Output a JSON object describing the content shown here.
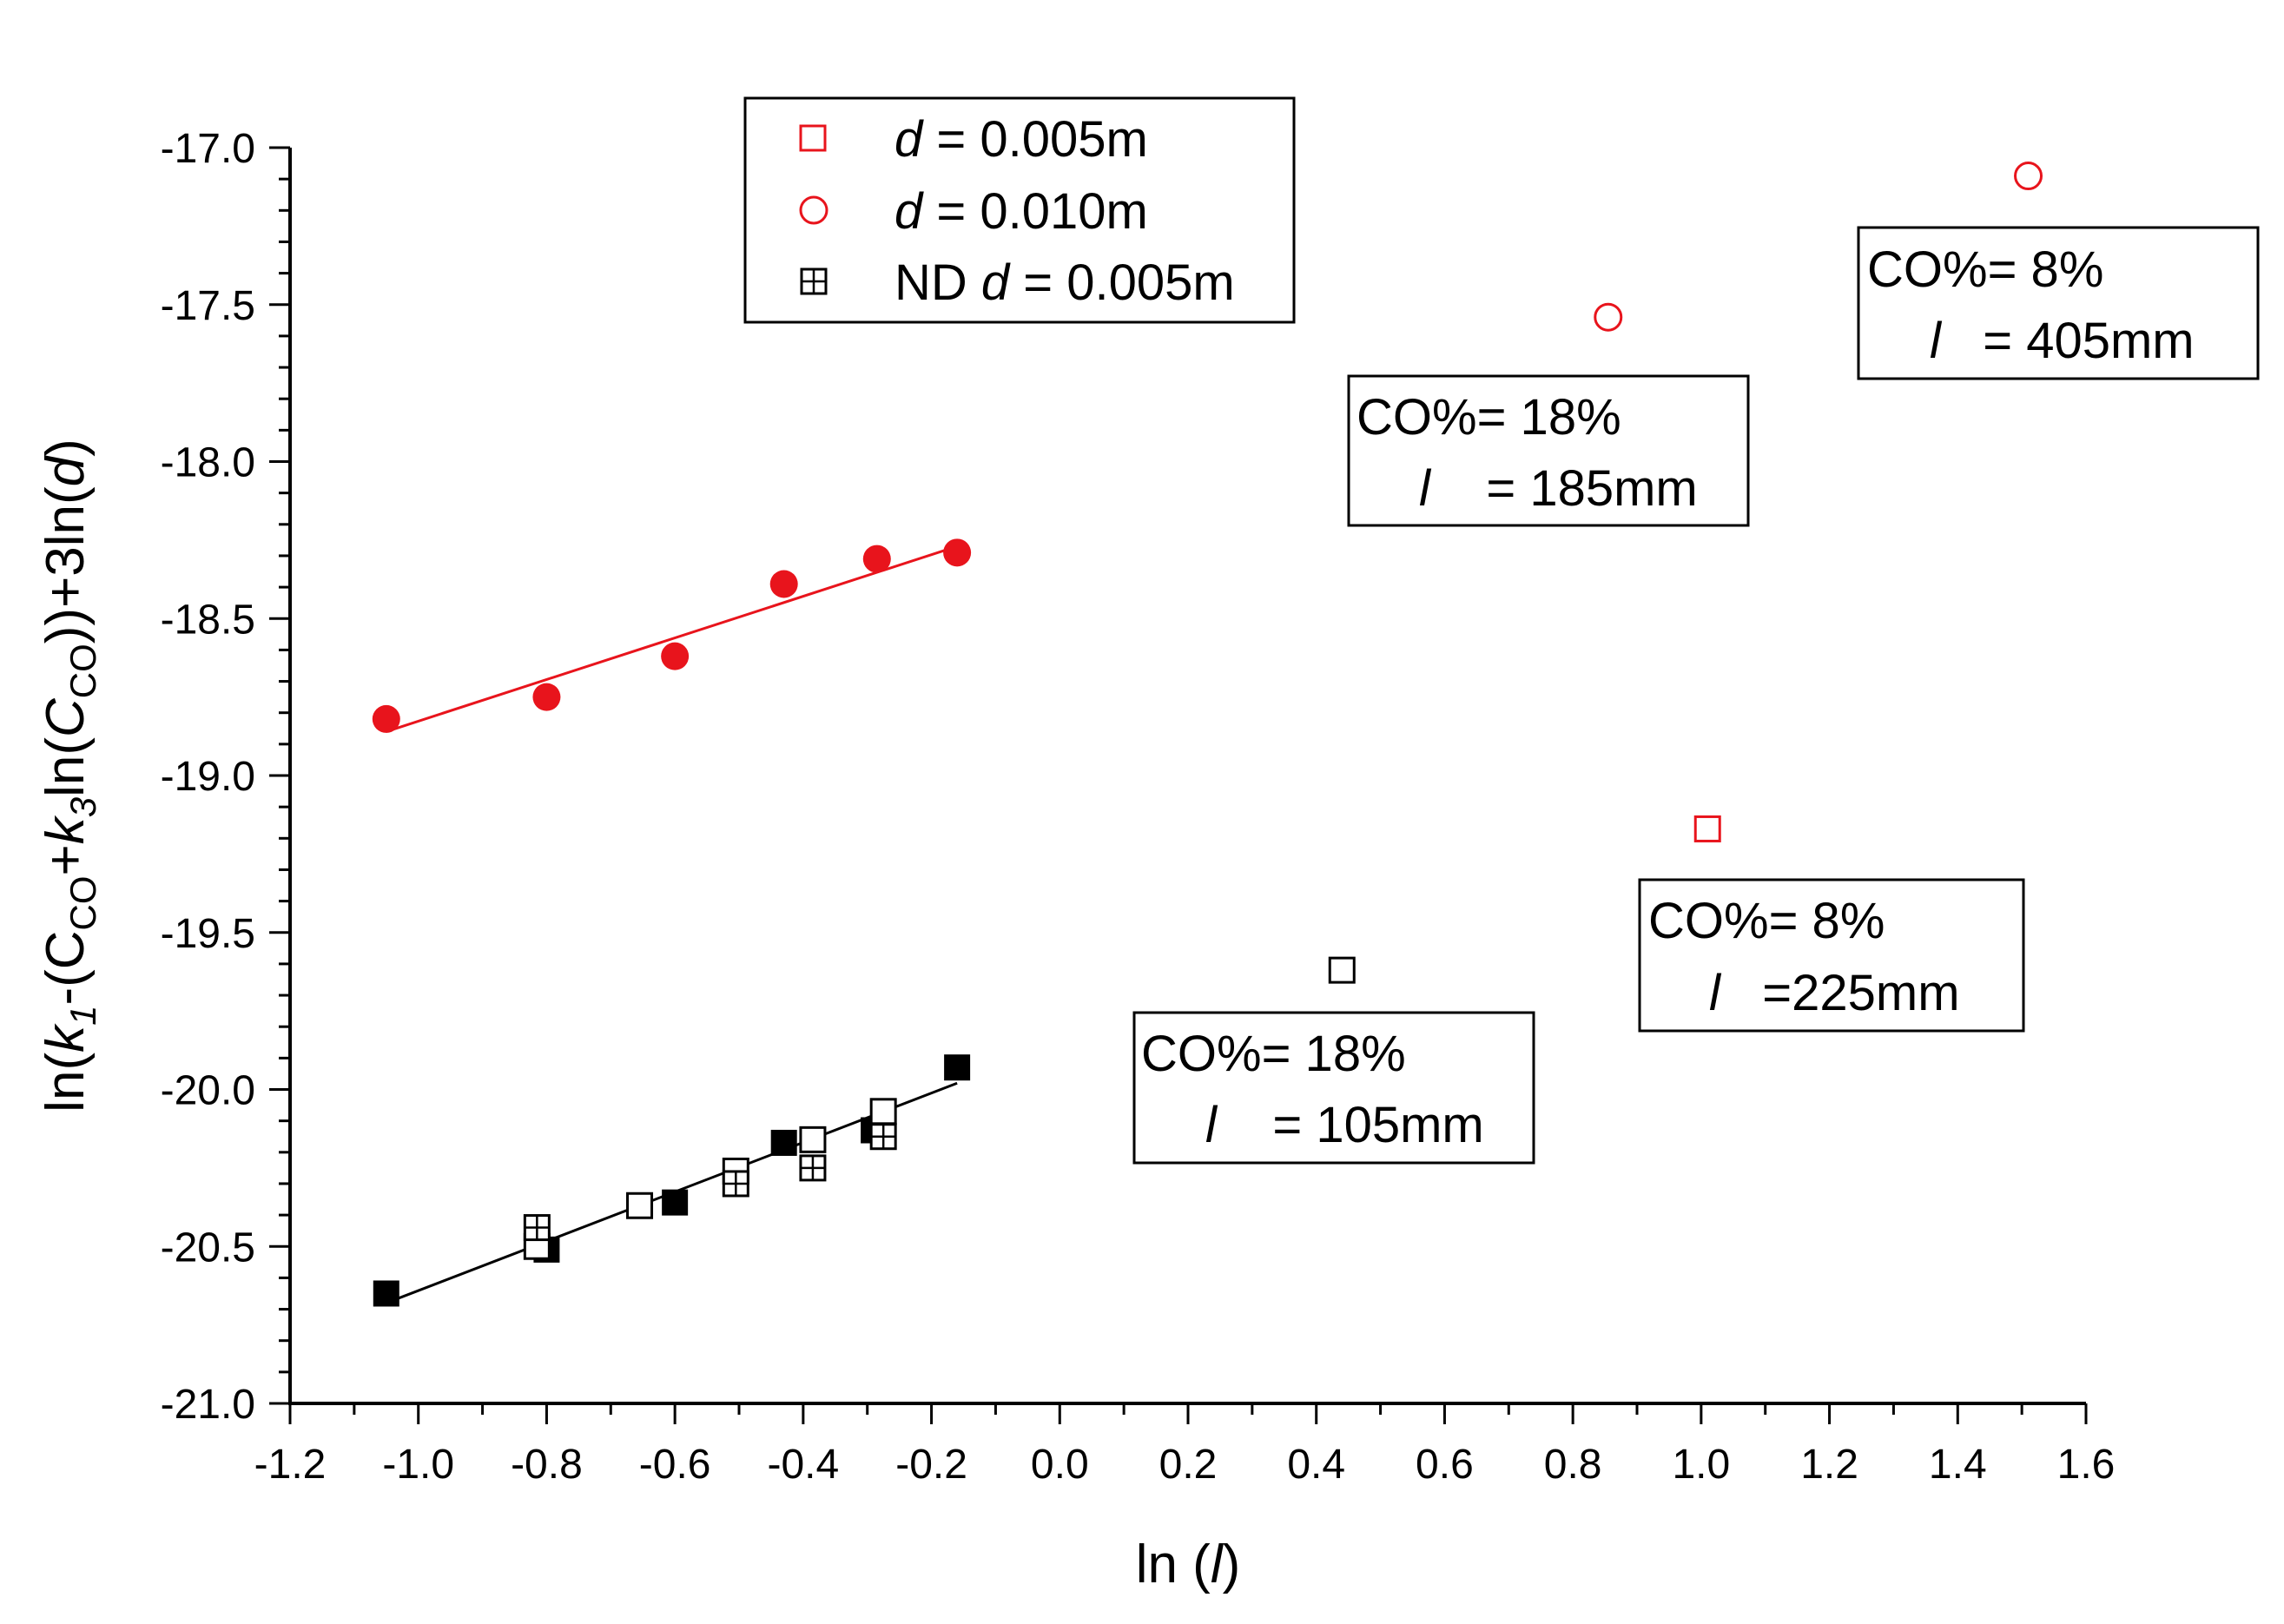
{
  "chart_data": {
    "type": "scatter",
    "xlabel_prefix": "ln (",
    "xlabel_var": "l",
    "xlabel_suffix": ")",
    "ylabel_parts": [
      "ln(",
      "k",
      "1",
      "-(C",
      "CO",
      "+",
      "k",
      "3",
      "ln(",
      "C",
      "CO",
      "))+3ln(",
      "d",
      ")"
    ],
    "xlim": [
      -1.2,
      1.6
    ],
    "ylim": [
      -21.0,
      -17.0
    ],
    "x_ticks": [
      "-1.2",
      "-1.0",
      "-0.8",
      "-0.6",
      "-0.4",
      "-0.2",
      "0.0",
      "0.2",
      "0.4",
      "0.6",
      "0.8",
      "1.0",
      "1.2",
      "1.4",
      "1.6"
    ],
    "y_ticks": [
      "-17.0",
      "-17.5",
      "-18.0",
      "-18.5",
      "-19.0",
      "-19.5",
      "-20.0",
      "-20.5",
      "-21.0"
    ],
    "legend": [
      {
        "marker": "open-square",
        "color": "#e8141c",
        "var": "d",
        "text": " = 0.005m",
        "prefix": ""
      },
      {
        "marker": "open-circle",
        "color": "#e8141c",
        "var": "d",
        "text": " = 0.010m",
        "prefix": ""
      },
      {
        "marker": "crossed-square",
        "color": "#000000",
        "var": "d",
        "text": " = 0.005m",
        "prefix": "ND "
      }
    ],
    "series": [
      {
        "name": "red filled circles",
        "marker": "filled-circle",
        "color": "#e8141c",
        "x": [
          -1.05,
          -0.8,
          -0.6,
          -0.43,
          -0.285,
          -0.16
        ],
        "y": [
          -18.82,
          -18.75,
          -18.62,
          -18.39,
          -18.31,
          -18.29
        ]
      },
      {
        "name": "black filled squares",
        "marker": "filled-square",
        "color": "#000000",
        "x": [
          -1.05,
          -0.8,
          -0.6,
          -0.43,
          -0.29,
          -0.16
        ],
        "y": [
          -20.65,
          -20.51,
          -20.36,
          -20.17,
          -20.13,
          -19.93
        ]
      },
      {
        "name": "black open squares",
        "marker": "open-square",
        "color": "#000000",
        "x": [
          -0.815,
          -0.655,
          -0.505,
          -0.385,
          -0.275
        ],
        "y": [
          -20.5,
          -20.37,
          -20.26,
          -20.16,
          -20.07
        ]
      },
      {
        "name": "ND crossed squares",
        "marker": "crossed-square",
        "color": "#000000",
        "x": [
          -0.815,
          -0.505,
          -0.385,
          -0.275
        ],
        "y": [
          -20.44,
          -20.3,
          -20.25,
          -20.15
        ]
      },
      {
        "name": "red open circles",
        "marker": "open-circle",
        "color": "#e8141c",
        "x": [
          0.855,
          1.51
        ],
        "y": [
          -17.54,
          -17.09
        ]
      },
      {
        "name": "red open square",
        "marker": "open-square",
        "color": "#e8141c",
        "x": [
          1.01
        ],
        "y": [
          -19.17
        ]
      },
      {
        "name": "black open square outlier",
        "marker": "open-square",
        "color": "#000000",
        "x": [
          0.44
        ],
        "y": [
          -19.62
        ]
      }
    ],
    "fit_lines": [
      {
        "name": "red fit",
        "color": "#e8141c",
        "x": [
          -1.05,
          -0.16
        ],
        "y": [
          -18.86,
          -18.27
        ]
      },
      {
        "name": "black fit",
        "color": "#000000",
        "x": [
          -1.05,
          -0.16
        ],
        "y": [
          -20.68,
          -19.98
        ]
      }
    ],
    "annotations": [
      {
        "id": "anno-co18-185",
        "line1": "CO%= 18%",
        "var": "l",
        "line2": "    = 185mm"
      },
      {
        "id": "anno-co8-405",
        "line1": "CO%= 8%",
        "var": "l",
        "line2": "   = 405mm"
      },
      {
        "id": "anno-co8-225",
        "line1": "CO%= 8%",
        "var": "l",
        "line2": "   =225mm"
      },
      {
        "id": "anno-co18-105",
        "line1": "CO%= 18%",
        "var": "l",
        "line2": "    = 105mm"
      }
    ]
  }
}
